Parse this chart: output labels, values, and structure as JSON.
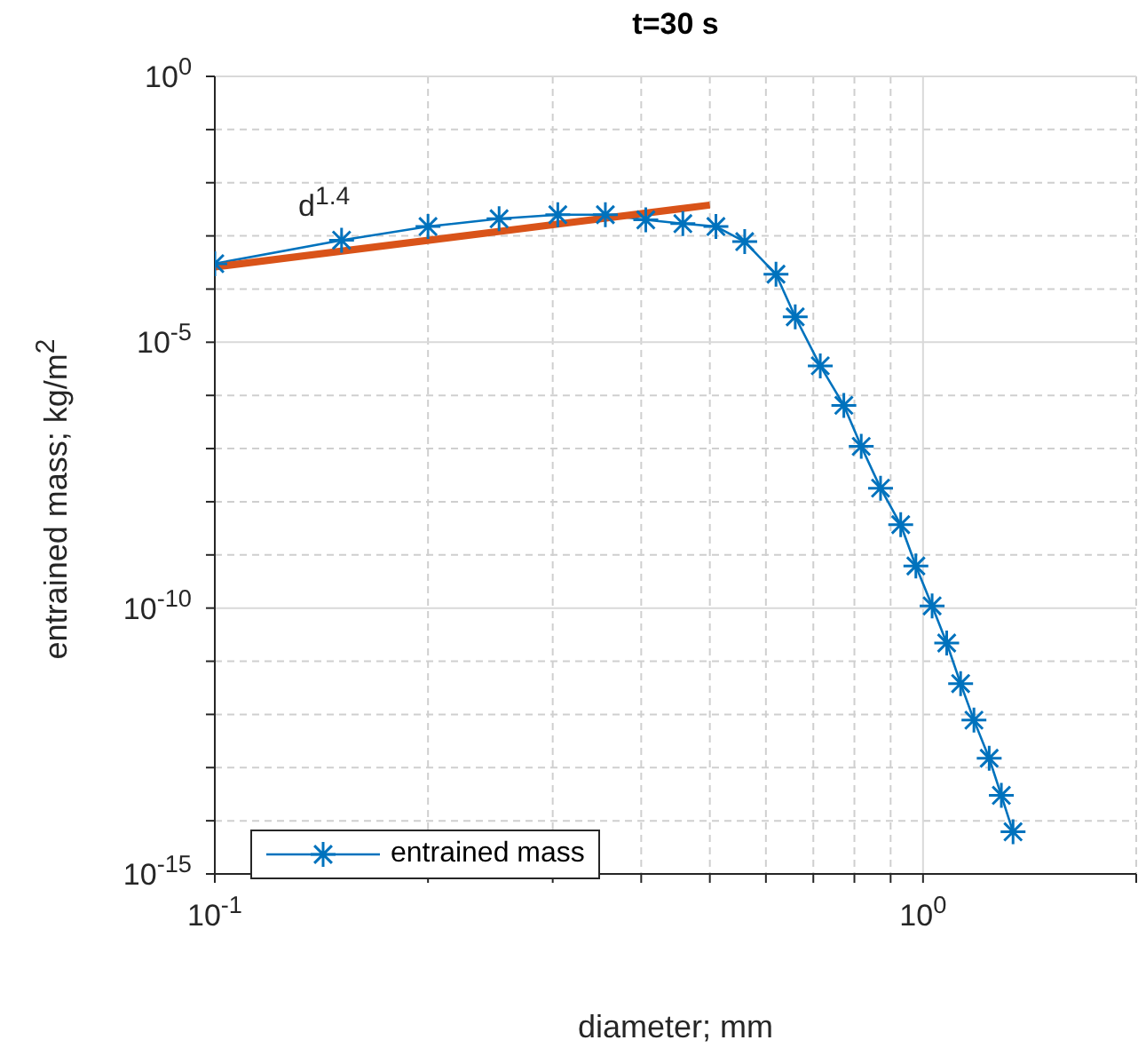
{
  "chart_data": {
    "type": "line",
    "title": "t=30 s",
    "xlabel": "diameter; mm",
    "ylabel": "entrained mass; kg/m$^{2}$",
    "log": "xy",
    "grid": true,
    "legend": "bottom left",
    "marker": "cross",
    "line_style": "solid",
    "xlim": [
      0.1,
      2
    ],
    "ylim": [
      1e-15,
      1
    ],
    "xticks": [
      {
        "value": 0.1,
        "label": "10$^{-1}$"
      },
      {
        "value": 0.2,
        "label": null
      },
      {
        "value": 0.3,
        "label": null
      },
      {
        "value": 0.4,
        "label": null
      },
      {
        "value": 0.5,
        "label": null
      },
      {
        "value": 0.6,
        "label": null
      },
      {
        "value": 0.7,
        "label": null
      },
      {
        "value": 0.8,
        "label": null
      },
      {
        "value": 0.9,
        "label": null
      },
      {
        "value": 1,
        "label": "10$^{0}$"
      },
      {
        "value": 2,
        "label": null
      }
    ],
    "yticks": [
      {
        "value": 1e-15,
        "label": "10$^{-15}$"
      },
      {
        "value": 1e-14,
        "label": null
      },
      {
        "value": 1e-13,
        "label": null
      },
      {
        "value": 1e-12,
        "label": null
      },
      {
        "value": 1e-11,
        "label": null
      },
      {
        "value": 1e-10,
        "label": "10$^{-10}$"
      },
      {
        "value": 1e-09,
        "label": null
      },
      {
        "value": 1e-08,
        "label": null
      },
      {
        "value": 1e-07,
        "label": null
      },
      {
        "value": 1e-06,
        "label": null
      },
      {
        "value": 1e-05,
        "label": "10$^{-5}$"
      },
      {
        "value": 0.0001,
        "label": null
      },
      {
        "value": 0.001,
        "label": null
      },
      {
        "value": 0.01,
        "label": null
      },
      {
        "value": 0.1,
        "label": null
      },
      {
        "value": 1,
        "label": "10$^{0}$"
      }
    ],
    "annotations": [
      "d$^{1.4}$"
    ],
    "series": [
      {
        "name": "entrained mass",
        "color": "#0072bd",
        "x": [
          0.1,
          0.151,
          0.2,
          0.252,
          0.305,
          0.356,
          0.406,
          0.458,
          0.51,
          0.56,
          0.62,
          0.66,
          0.716,
          0.773,
          0.818,
          0.871,
          0.93,
          0.977,
          1.03,
          1.08,
          1.13,
          1.18,
          1.24,
          1.29,
          1.34
        ],
        "values": [
          0.0003,
          0.00083,
          0.0015,
          0.0021,
          0.0025,
          0.0025,
          0.002,
          0.0017,
          0.0015,
          0.00078,
          0.00019,
          3e-05,
          3.6e-06,
          6.5e-07,
          1.1e-07,
          1.8e-08,
          3.7e-09,
          6.2e-10,
          1.1e-10,
          2.2e-11,
          3.8e-12,
          7.8e-13,
          1.5e-13,
          3e-14,
          6.2e-15
        ]
      },
      {
        "type": "line",
        "color": "#d95319",
        "marker": "none",
        "x": [
          0.1,
          0.5
        ],
        "values": [
          0.00026,
          0.0038
        ]
      }
    ]
  }
}
